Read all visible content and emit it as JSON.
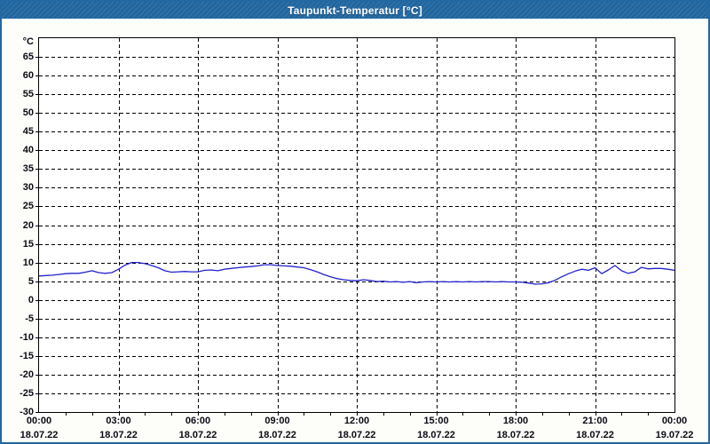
{
  "window": {
    "title": "Taupunkt-Temperatur [°C]"
  },
  "colors": {
    "titlebar_bg": "#2268a2",
    "window_border": "#2268a2",
    "title_text": "#ffffff",
    "plot_border": "#000000",
    "grid": "#000000",
    "line": "#2222cc",
    "label_text": "#0a0a14",
    "plot_bg": "#ffffff",
    "window_bg": "#fdfdfa"
  },
  "chart_data": {
    "type": "line",
    "title": "Taupunkt-Temperatur [°C]",
    "series_name": "Taupunkt",
    "ylabel_unit": "°C",
    "ylim": [
      -30,
      70
    ],
    "y_tick_step": 5,
    "y_tick_labels": [
      65,
      60,
      55,
      50,
      45,
      40,
      35,
      30,
      25,
      20,
      15,
      10,
      5,
      0,
      -5,
      -10,
      -15,
      -20,
      -25,
      -30
    ],
    "grid": "dashed",
    "legend": "none",
    "x_ticks": [
      {
        "hour": 0,
        "time": "00:00",
        "date": "18.07.22"
      },
      {
        "hour": 3,
        "time": "03:00",
        "date": "18.07.22"
      },
      {
        "hour": 6,
        "time": "06:00",
        "date": "18.07.22"
      },
      {
        "hour": 9,
        "time": "09:00",
        "date": "18.07.22"
      },
      {
        "hour": 12,
        "time": "12:00",
        "date": "18.07.22"
      },
      {
        "hour": 15,
        "time": "15:00",
        "date": "18.07.22"
      },
      {
        "hour": 18,
        "time": "18:00",
        "date": "18.07.22"
      },
      {
        "hour": 21,
        "time": "21:00",
        "date": "18.07.22"
      },
      {
        "hour": 24,
        "time": "00:00",
        "date": "19.07.22"
      }
    ],
    "minor_tick_step_hours": 1,
    "x": {
      "start_hour": 0,
      "end_hour": 24,
      "step_hours": 0.25
    },
    "values": [
      6.4,
      6.5,
      6.6,
      6.8,
      7.0,
      7.1,
      7.1,
      7.4,
      7.8,
      7.3,
      7.1,
      7.3,
      8.2,
      9.3,
      10.0,
      10.0,
      9.7,
      9.2,
      8.6,
      7.8,
      7.4,
      7.5,
      7.6,
      7.5,
      7.5,
      7.9,
      8.0,
      7.8,
      8.2,
      8.4,
      8.6,
      8.8,
      8.9,
      9.1,
      9.4,
      9.4,
      9.2,
      9.1,
      9.0,
      8.8,
      8.6,
      8.1,
      7.5,
      6.8,
      6.2,
      5.7,
      5.4,
      5.2,
      5.1,
      5.4,
      5.2,
      4.9,
      5.0,
      4.8,
      4.9,
      4.7,
      4.9,
      4.6,
      4.8,
      4.9,
      4.8,
      4.9,
      4.8,
      4.9,
      4.8,
      4.9,
      4.8,
      4.9,
      4.9,
      4.8,
      4.9,
      4.8,
      4.8,
      4.7,
      4.5,
      4.2,
      4.3,
      4.6,
      5.3,
      6.2,
      7.0,
      7.7,
      8.2,
      7.9,
      8.6,
      7.0,
      8.0,
      9.2,
      7.8,
      7.1,
      7.5,
      8.7,
      8.3,
      8.4,
      8.4,
      8.2,
      7.9
    ]
  }
}
